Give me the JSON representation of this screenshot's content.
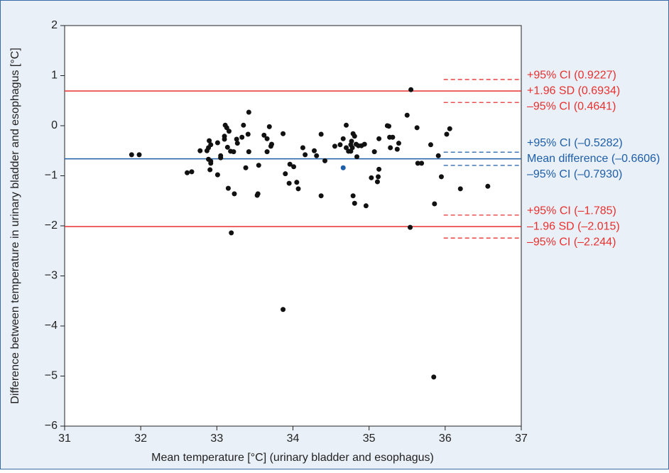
{
  "chart_data": {
    "type": "scatter",
    "x_label": "Mean temperature [°C] (urinary bladder and esophagus)",
    "y_label": "Difference between temperature in urinary bladder and esophagus [°C]",
    "xlim": [
      31,
      37
    ],
    "xticks": [
      31,
      32,
      33,
      34,
      35,
      36,
      37
    ],
    "ylim": [
      -6,
      2
    ],
    "yticks": [
      2,
      1,
      0,
      {
        "value": -1,
        "label": "−1"
      },
      {
        "value": -2,
        "label": "−2"
      },
      {
        "value": -3,
        "label": "−3"
      },
      {
        "value": -4,
        "label": "−4"
      },
      {
        "value": -5,
        "label": "−5"
      },
      {
        "value": -6,
        "label": "−6"
      }
    ],
    "series": [
      {
        "color": "#111111",
        "x": [
          31.88,
          31.98,
          32.61,
          32.67,
          32.78,
          32.87,
          32.89,
          32.9,
          32.89,
          32.92,
          32.91,
          32.92,
          32.92,
          33.01,
          33.01,
          33.05,
          33.05,
          33.1,
          33.11,
          33.1,
          33.13,
          33.14,
          33.15,
          33.16,
          33.18,
          33.19,
          33.22,
          33.23,
          33.26,
          33.27,
          33.35,
          33.33,
          33.38,
          33.41,
          33.42,
          33.42,
          33.53,
          33.54,
          33.55,
          33.62,
          33.66,
          33.66,
          33.69,
          33.71,
          33.72,
          33.87,
          33.87,
          33.9,
          33.95,
          33.96,
          34.01,
          34.05,
          34.07,
          34.13,
          34.16,
          34.28,
          34.31,
          34.37,
          34.37,
          34.42,
          34.55,
          34.62,
          34.66,
          34.7,
          34.7,
          34.73,
          34.76,
          34.76,
          34.77,
          34.78,
          34.79,
          34.79,
          34.81,
          34.81,
          34.83,
          34.84,
          34.86,
          34.9,
          34.94,
          34.96,
          35.03,
          35.07,
          35.11,
          35.12,
          35.13,
          35.13,
          35.24,
          35.26,
          35.27,
          35.28,
          35.31,
          35.37,
          35.39,
          35.5,
          35.55,
          35.54,
          35.63,
          35.64,
          35.69,
          35.81,
          35.86,
          35.85,
          35.91,
          35.95,
          36.02,
          36.06,
          36.2,
          36.56
        ],
        "values": [
          -0.58,
          -0.58,
          -0.94,
          -0.92,
          -0.5,
          -0.5,
          -0.44,
          -0.3,
          -0.67,
          -0.75,
          -0.88,
          -0.71,
          -0.38,
          -0.34,
          -0.98,
          -0.6,
          -0.64,
          -0.21,
          0.01,
          -0.27,
          -0.04,
          -0.43,
          -1.25,
          -0.11,
          -0.51,
          -2.14,
          -0.52,
          -1.36,
          -0.27,
          -0.35,
          0.01,
          -0.23,
          -0.84,
          -0.17,
          -0.52,
          0.27,
          -1.39,
          -1.36,
          -0.79,
          -0.19,
          -0.26,
          -0.52,
          -0.02,
          -0.41,
          -0.37,
          -0.16,
          -3.67,
          -0.96,
          -1.15,
          -0.77,
          -0.82,
          -1.13,
          -1.26,
          -0.44,
          -0.58,
          -0.5,
          -0.6,
          -0.17,
          -1.4,
          -0.7,
          -0.41,
          -0.38,
          -0.26,
          0.01,
          -0.44,
          -0.51,
          -0.38,
          -0.51,
          -0.31,
          -0.44,
          -0.16,
          -1.4,
          -0.21,
          -1.55,
          -0.37,
          -0.62,
          -0.4,
          -0.4,
          -0.37,
          -1.6,
          -1.04,
          -0.52,
          -1.12,
          -1.02,
          -0.26,
          -0.87,
          0.0,
          -0.01,
          -0.23,
          -0.44,
          -0.23,
          -0.47,
          -0.35,
          0.21,
          0.72,
          -2.03,
          -0.04,
          -0.75,
          -0.75,
          -0.38,
          -1.56,
          -5.02,
          -0.6,
          -1.02,
          -0.17,
          -0.06,
          -1.26,
          -1.21
        ]
      },
      {
        "color": "#1d5ea8",
        "x": [
          34.66
        ],
        "values": [
          -0.84
        ]
      }
    ],
    "limit_groups": [
      {
        "color": "#e8312f",
        "upper": {
          "value": 0.9227,
          "label": "+95% CI (0.9227)"
        },
        "line": {
          "value": 0.6934,
          "label": "+1.96 SD (0.6934)"
        },
        "lower": {
          "value": 0.4641,
          "label": "–95% CI (0.4641)"
        }
      },
      {
        "color": "#1d5ea8",
        "upper": {
          "value": -0.5282,
          "label": "+95% CI (–0.5282)"
        },
        "line": {
          "value": -0.6606,
          "label": "Mean difference (–0.6606)"
        },
        "lower": {
          "value": -0.793,
          "label": "–95% CI (–0.7930)"
        }
      },
      {
        "color": "#e8312f",
        "upper": {
          "value": -1.785,
          "label": "+95% CI (–1.785)"
        },
        "line": {
          "value": -2.015,
          "label": "–1.96 SD (–2.015)"
        },
        "lower": {
          "value": -2.244,
          "label": "–95% CI (–2.244)"
        }
      }
    ]
  }
}
